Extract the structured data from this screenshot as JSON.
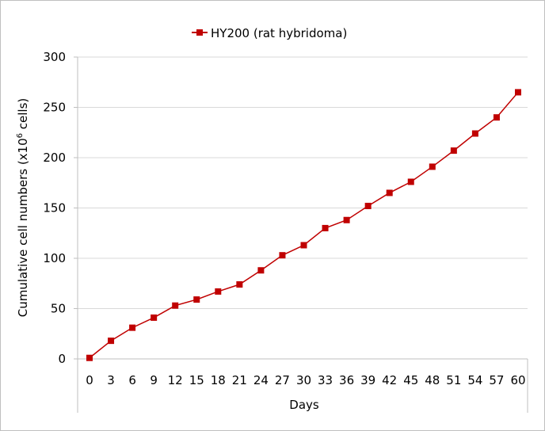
{
  "chart_data": {
    "type": "line",
    "title": "",
    "xlabel": "Days",
    "ylabel": "Cumulative cell numbers (x10",
    "ylabel_superscript": "6",
    "ylabel_suffix": " cells)",
    "legend": {
      "placement": "top-center"
    },
    "ylim": [
      0,
      300
    ],
    "yticks": [
      0,
      50,
      100,
      150,
      200,
      250,
      300
    ],
    "grid": {
      "horizontal": true,
      "vertical": false
    },
    "categories": [
      "0",
      "3",
      "6",
      "9",
      "12",
      "15",
      "18",
      "21",
      "24",
      "27",
      "30",
      "33",
      "36",
      "39",
      "42",
      "45",
      "48",
      "51",
      "54",
      "57",
      "60"
    ],
    "series": [
      {
        "name": "HY200 (rat hybridoma)",
        "color": "#c00000",
        "marker": "square",
        "values": [
          1,
          18,
          31,
          41,
          53,
          59,
          67,
          74,
          88,
          103,
          113,
          130,
          138,
          152,
          165,
          176,
          191,
          207,
          224,
          240,
          265
        ]
      }
    ]
  }
}
